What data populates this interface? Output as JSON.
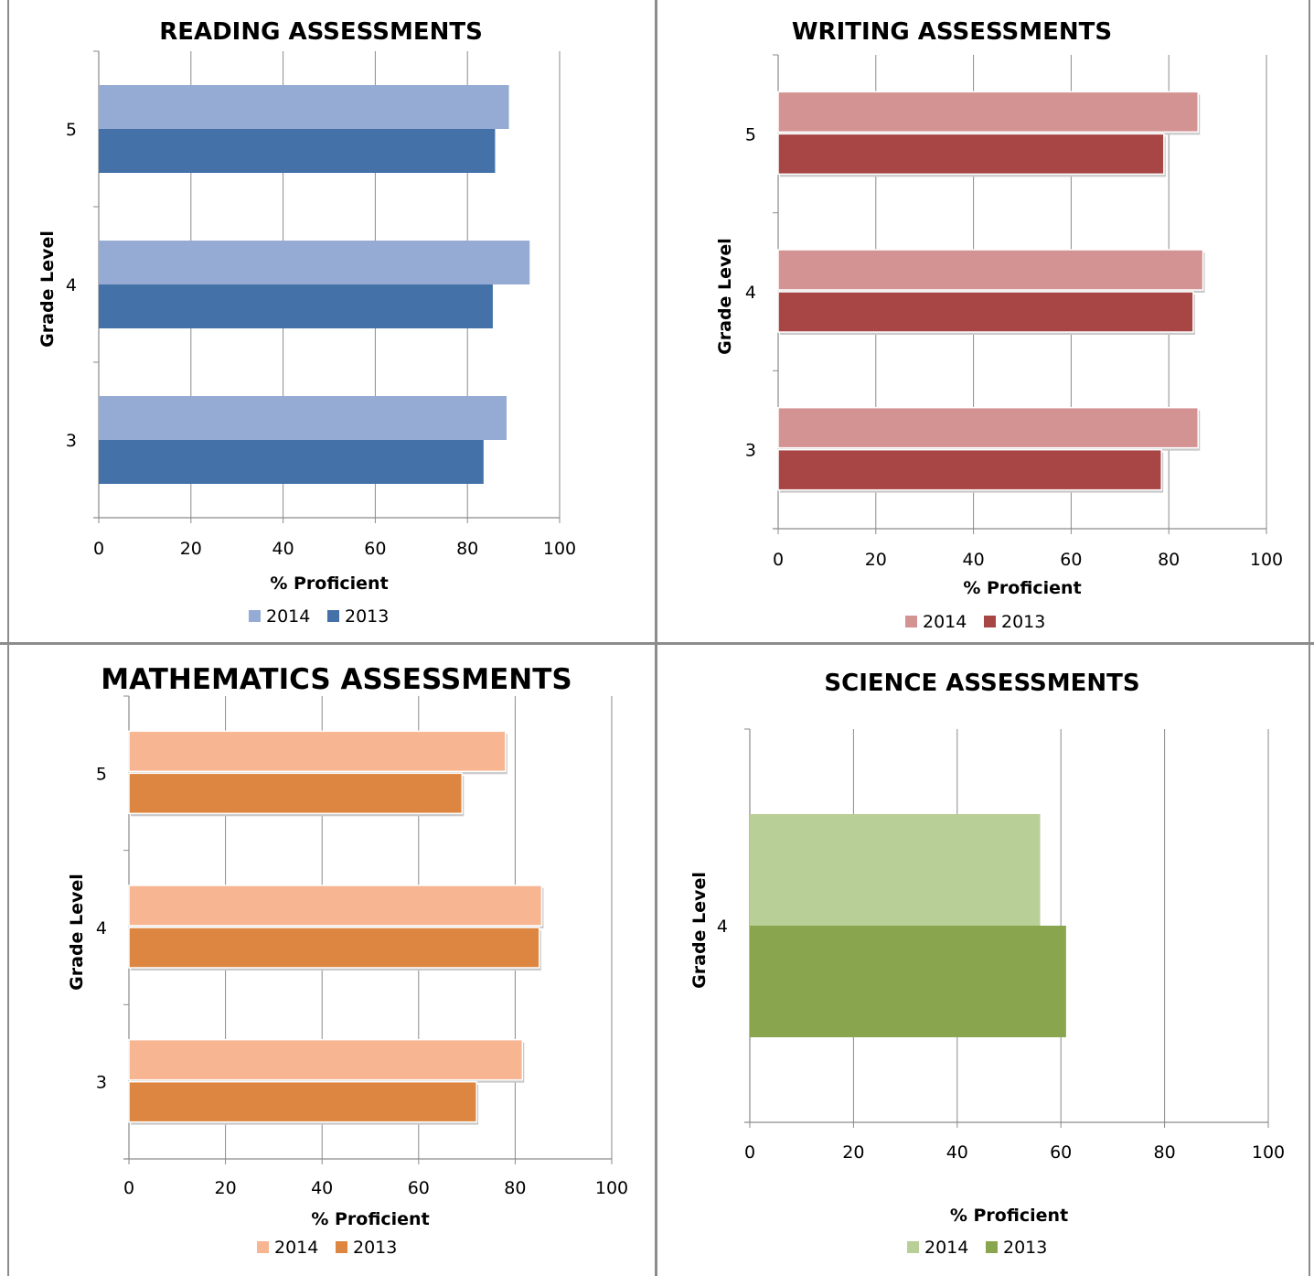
{
  "chart_data": [
    {
      "type": "bar",
      "orientation": "horizontal",
      "title": "READING ASSESSMENTS",
      "xlabel": "% Proficient",
      "ylabel": "Grade Level",
      "categories": [
        "3",
        "4",
        "5"
      ],
      "xlim": [
        0,
        100
      ],
      "x_ticks": [
        "0",
        "20",
        "40",
        "60",
        "80",
        "100"
      ],
      "grid": true,
      "legend_position": "bottom",
      "series": [
        {
          "name": "2014",
          "color": "#95abd3",
          "values": [
            88.5,
            93.5,
            89
          ]
        },
        {
          "name": "2013",
          "color": "#4472a8",
          "values": [
            83.5,
            85.5,
            86
          ]
        }
      ]
    },
    {
      "type": "bar",
      "orientation": "horizontal",
      "title": "WRITING ASSESSMENTS",
      "xlabel": "% Proficient",
      "ylabel": "Grade Level",
      "categories": [
        "3",
        "4",
        "5"
      ],
      "xlim": [
        0,
        100
      ],
      "x_ticks": [
        "0",
        "20",
        "40",
        "60",
        "80",
        "100"
      ],
      "grid": true,
      "legend_position": "bottom",
      "series": [
        {
          "name": "2014",
          "color": "#d49393",
          "values": [
            86,
            87,
            86
          ]
        },
        {
          "name": "2013",
          "color": "#a84545",
          "values": [
            78.5,
            85,
            79
          ]
        }
      ]
    },
    {
      "type": "bar",
      "orientation": "horizontal",
      "title": "MATHEMATICS ASSESSMENTS",
      "xlabel": "% Proficient",
      "ylabel": "Grade Level",
      "categories": [
        "3",
        "4",
        "5"
      ],
      "xlim": [
        0,
        100
      ],
      "x_ticks": [
        "0",
        "20",
        "40",
        "60",
        "80",
        "100"
      ],
      "grid": true,
      "legend_position": "bottom",
      "series": [
        {
          "name": "2014",
          "color": "#f7b592",
          "values": [
            81.5,
            85.5,
            78
          ]
        },
        {
          "name": "2013",
          "color": "#dd8641",
          "values": [
            72,
            85,
            69
          ]
        }
      ]
    },
    {
      "type": "bar",
      "orientation": "horizontal",
      "title": "SCIENCE ASSESSMENTS",
      "xlabel": "% Proficient",
      "ylabel": "Grade Level",
      "categories": [
        "4"
      ],
      "xlim": [
        0,
        100
      ],
      "x_ticks": [
        "0",
        "20",
        "40",
        "60",
        "80",
        "100"
      ],
      "grid": true,
      "legend_position": "bottom",
      "series": [
        {
          "name": "2014",
          "color": "#b9cf98",
          "values": [
            56
          ]
        },
        {
          "name": "2013",
          "color": "#89a64e",
          "values": [
            61
          ]
        }
      ]
    }
  ]
}
